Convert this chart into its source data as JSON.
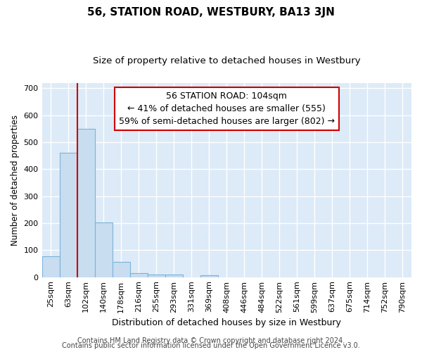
{
  "title": "56, STATION ROAD, WESTBURY, BA13 3JN",
  "subtitle": "Size of property relative to detached houses in Westbury",
  "xlabel": "Distribution of detached houses by size in Westbury",
  "ylabel": "Number of detached properties",
  "bins": [
    "25sqm",
    "63sqm",
    "102sqm",
    "140sqm",
    "178sqm",
    "216sqm",
    "255sqm",
    "293sqm",
    "331sqm",
    "369sqm",
    "408sqm",
    "446sqm",
    "484sqm",
    "522sqm",
    "561sqm",
    "599sqm",
    "637sqm",
    "675sqm",
    "714sqm",
    "752sqm",
    "790sqm"
  ],
  "values": [
    78,
    460,
    550,
    203,
    57,
    15,
    9,
    9,
    0,
    8,
    0,
    0,
    0,
    0,
    0,
    0,
    0,
    0,
    0,
    0,
    0
  ],
  "bar_color": "#c9ddf0",
  "bar_edge_color": "#7ab3d9",
  "vline_x_index": 2,
  "vline_color": "#cc0000",
  "annotation_line1": "56 STATION ROAD: 104sqm",
  "annotation_line2": "← 41% of detached houses are smaller (555)",
  "annotation_line3": "59% of semi-detached houses are larger (802) →",
  "annotation_box_color": "#ffffff",
  "annotation_box_edge_color": "#cc0000",
  "ylim": [
    0,
    720
  ],
  "yticks": [
    0,
    100,
    200,
    300,
    400,
    500,
    600,
    700
  ],
  "footer1": "Contains HM Land Registry data © Crown copyright and database right 2024.",
  "footer2": "Contains public sector information licensed under the Open Government Licence v3.0.",
  "fig_background_color": "#ffffff",
  "plot_background_color": "#ddeaf7",
  "grid_color": "#ffffff",
  "title_fontsize": 11,
  "subtitle_fontsize": 9.5,
  "xlabel_fontsize": 9,
  "ylabel_fontsize": 8.5,
  "tick_fontsize": 8,
  "annotation_fontsize": 9,
  "footer_fontsize": 7
}
